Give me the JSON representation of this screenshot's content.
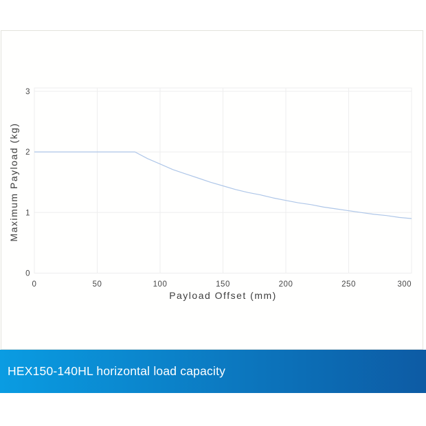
{
  "caption": {
    "text": "HEX150-140HL horizontal load capacity",
    "text_color": "#ffffff",
    "gradient_left": "#0a9ce2",
    "gradient_right": "#0d5ba4"
  },
  "panel": {
    "border_color": "#e3e3dc",
    "background": "#fffffe"
  },
  "chart_data": {
    "type": "line",
    "title": "",
    "xlabel": "Payload Offset (mm)",
    "ylabel": "Maximum Payload (kg)",
    "xlim": [
      0,
      301
    ],
    "ylim": [
      0,
      3.06
    ],
    "x_ticks": [
      0,
      50,
      100,
      150,
      200,
      250,
      300
    ],
    "y_ticks": [
      0,
      1,
      2,
      3
    ],
    "grid": true,
    "legend_position": "none",
    "grid_color": "#eeeeee",
    "tick_color": "#474747",
    "label_color": "#3d3d3d",
    "series": [
      {
        "name": "maximum-payload-vs-offset",
        "color": "#aec6e8",
        "x": [
          0,
          80,
          90,
          100,
          110,
          120,
          130,
          140,
          150,
          160,
          170,
          180,
          190,
          200,
          210,
          220,
          230,
          240,
          250,
          260,
          270,
          280,
          290,
          300
        ],
        "y": [
          2.0,
          2.0,
          1.89,
          1.8,
          1.71,
          1.64,
          1.57,
          1.5,
          1.44,
          1.38,
          1.33,
          1.29,
          1.24,
          1.2,
          1.16,
          1.13,
          1.09,
          1.06,
          1.03,
          1.0,
          0.97,
          0.95,
          0.92,
          0.9
        ]
      }
    ]
  }
}
